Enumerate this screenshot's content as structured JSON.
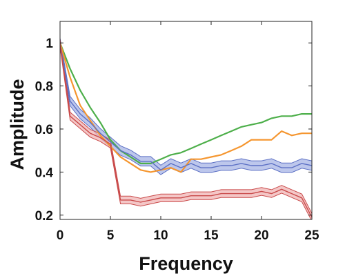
{
  "chart_data": {
    "type": "line",
    "title": "",
    "xlabel": "Frequency",
    "ylabel": "Amplitude",
    "xlim": [
      0,
      25
    ],
    "ylim": [
      0.18,
      1.1
    ],
    "xticks": [
      0,
      5,
      10,
      15,
      20,
      25
    ],
    "xtick_labels": [
      "0",
      "5",
      "10",
      "15",
      "20",
      "25"
    ],
    "yticks": [
      0.2,
      0.4,
      0.6,
      0.8,
      1
    ],
    "ytick_labels": [
      "0.2",
      "0.4",
      "0.6",
      "0.8",
      "1"
    ],
    "grid": false,
    "legend": "none",
    "x": [
      0,
      1,
      2,
      3,
      4,
      5,
      6,
      7,
      8,
      9,
      10,
      11,
      12,
      13,
      14,
      15,
      16,
      17,
      18,
      19,
      20,
      21,
      22,
      23,
      24,
      25
    ],
    "series": [
      {
        "color": "#4daf4a",
        "band": false,
        "values": [
          1.0,
          0.88,
          0.78,
          0.7,
          0.63,
          0.55,
          0.5,
          0.47,
          0.44,
          0.44,
          0.46,
          0.48,
          0.49,
          0.51,
          0.53,
          0.55,
          0.57,
          0.59,
          0.61,
          0.62,
          0.63,
          0.65,
          0.66,
          0.66,
          0.67,
          0.67
        ]
      },
      {
        "color": "#f5962f",
        "band": false,
        "values": [
          1.0,
          0.84,
          0.71,
          0.64,
          0.57,
          0.52,
          0.47,
          0.44,
          0.41,
          0.4,
          0.41,
          0.42,
          0.4,
          0.46,
          0.46,
          0.47,
          0.48,
          0.5,
          0.52,
          0.55,
          0.55,
          0.55,
          0.59,
          0.57,
          0.58,
          0.58
        ]
      },
      {
        "color": "#5b6fc4",
        "band_color": "#a7b4e5",
        "band": true,
        "values": [
          1.0,
          0.73,
          0.67,
          0.63,
          0.58,
          0.54,
          0.5,
          0.48,
          0.45,
          0.45,
          0.41,
          0.44,
          0.42,
          0.44,
          0.42,
          0.42,
          0.43,
          0.43,
          0.44,
          0.43,
          0.43,
          0.44,
          0.42,
          0.42,
          0.44,
          0.43
        ],
        "band_width": 0.022
      },
      {
        "color": "#c94a4a",
        "band_color": "#f0b4b4",
        "band": true,
        "values": [
          1.0,
          0.66,
          0.62,
          0.58,
          0.56,
          0.53,
          0.27,
          0.27,
          0.26,
          0.27,
          0.28,
          0.28,
          0.28,
          0.29,
          0.29,
          0.29,
          0.3,
          0.3,
          0.3,
          0.3,
          0.31,
          0.3,
          0.32,
          0.3,
          0.28,
          0.19
        ],
        "band_width": 0.018
      }
    ]
  }
}
